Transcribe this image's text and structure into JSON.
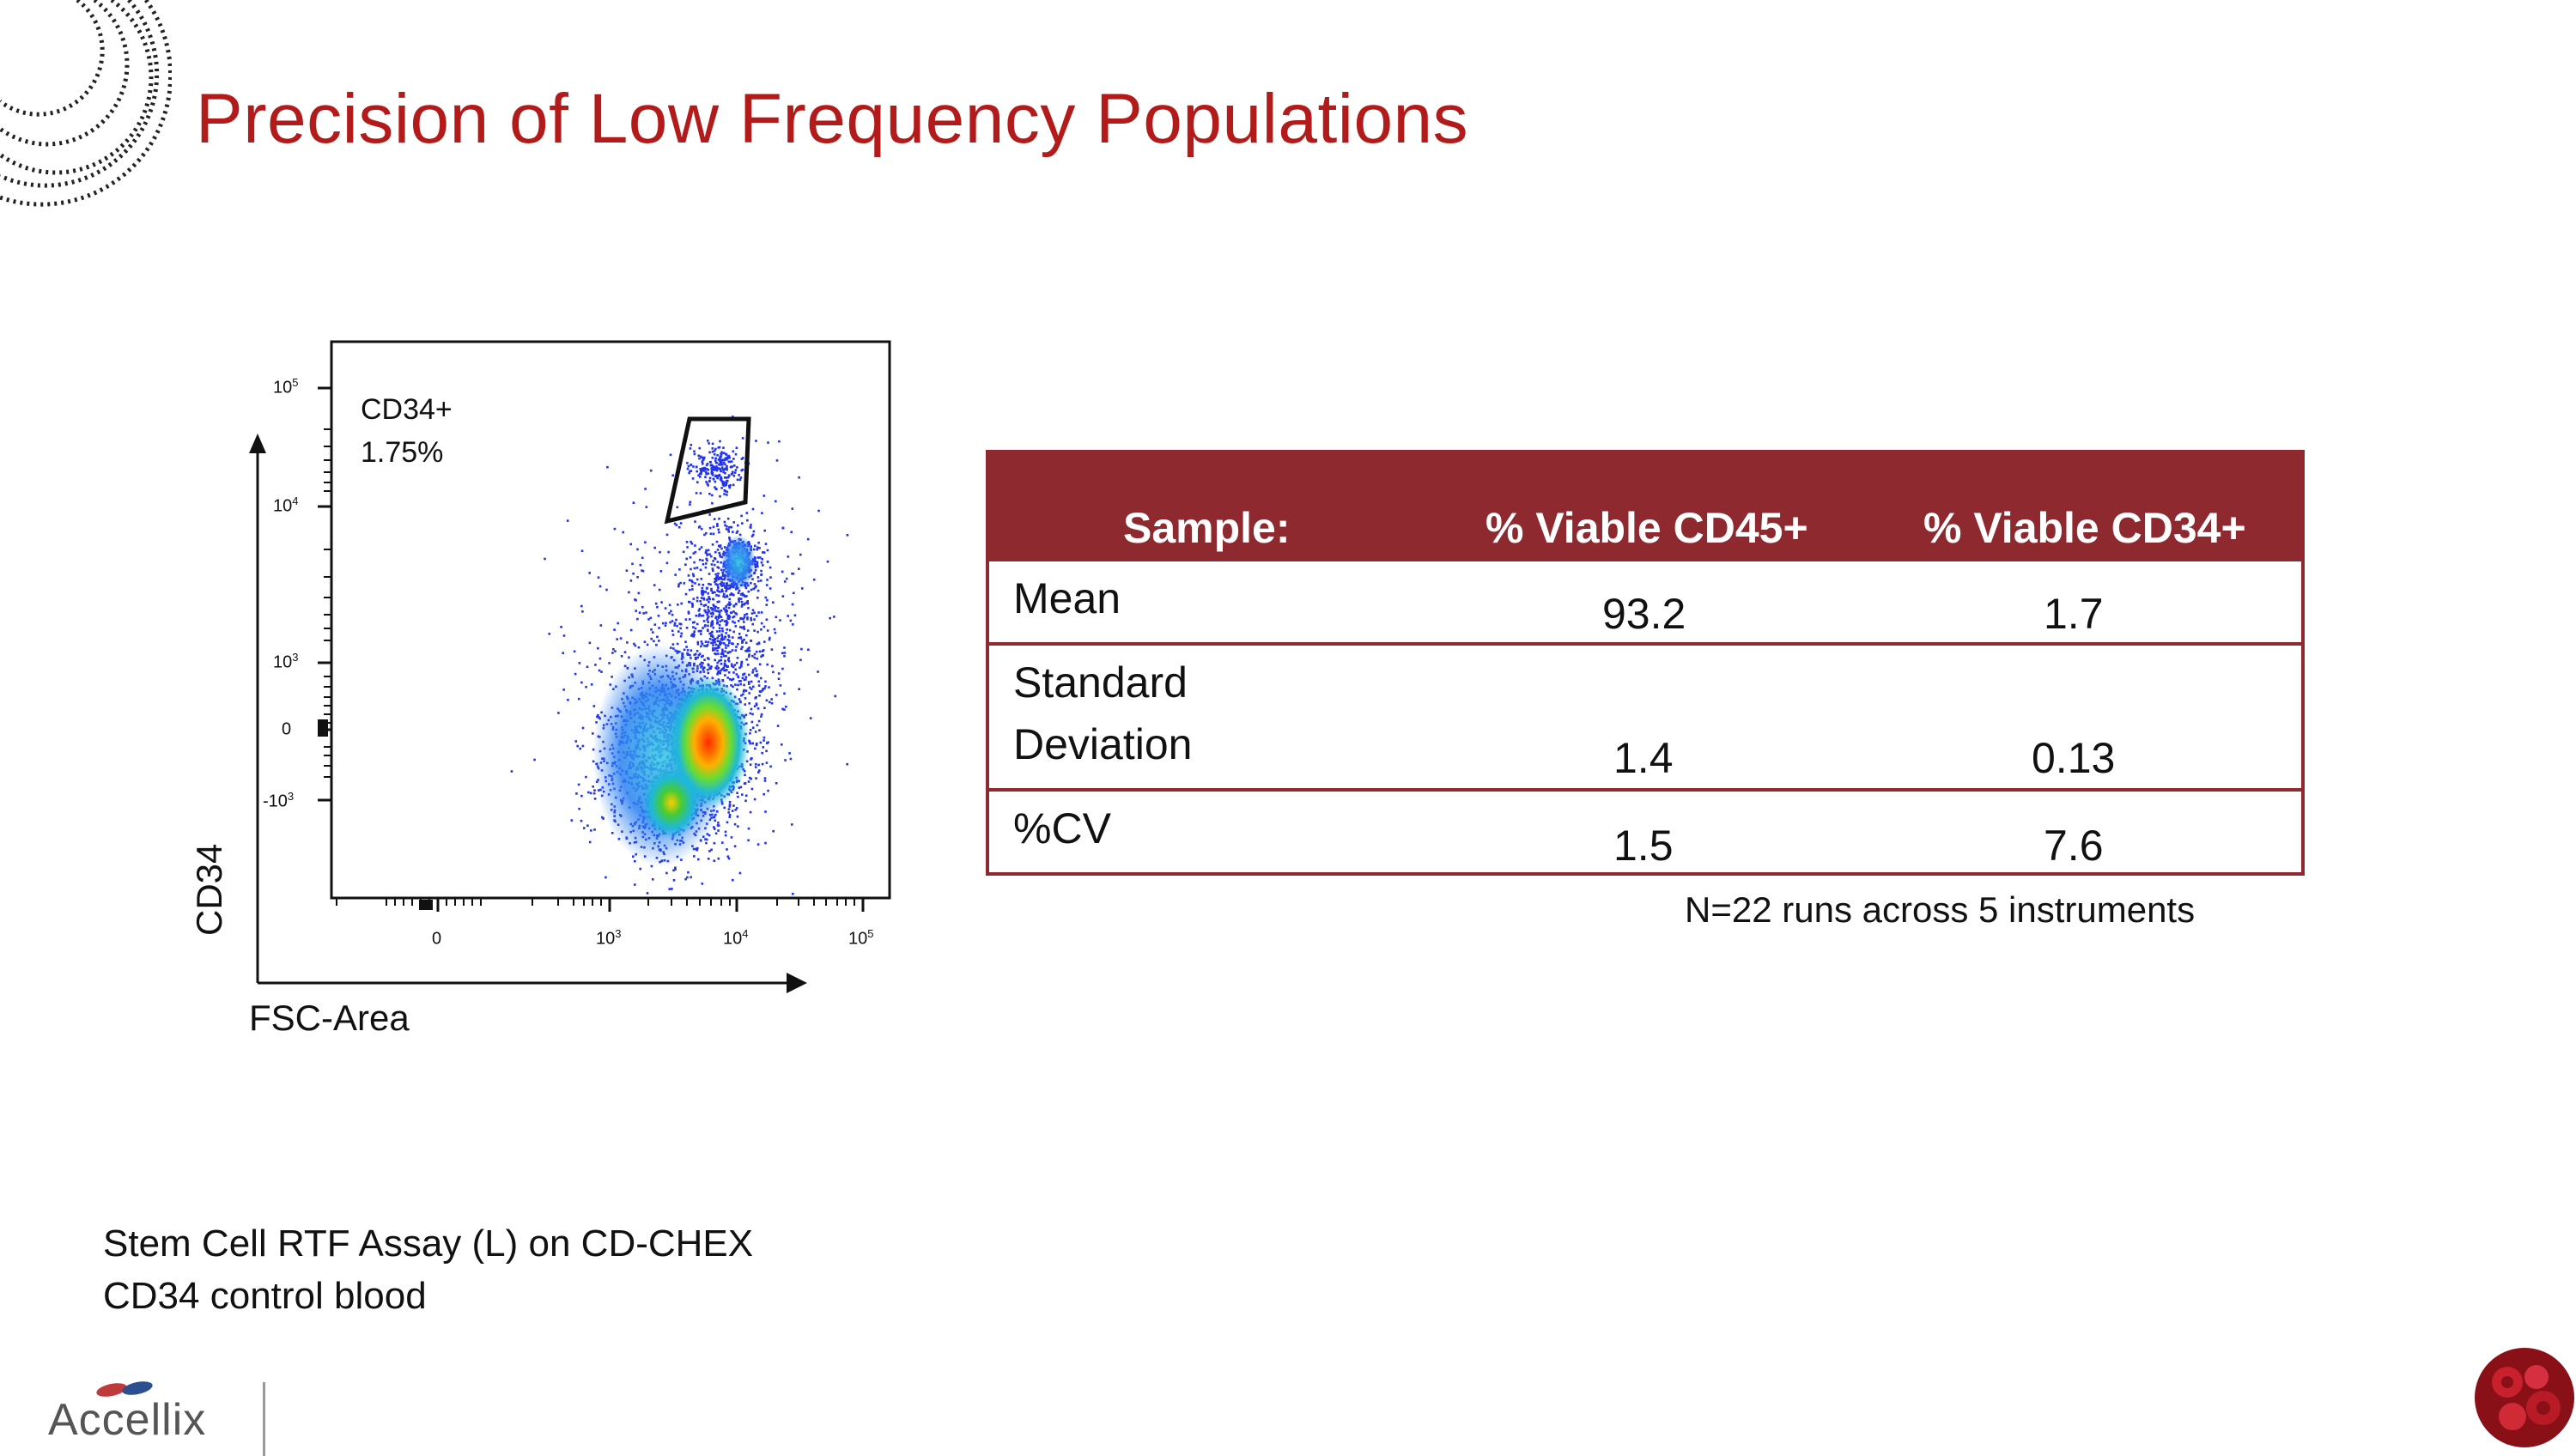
{
  "slide": {
    "title": "Precision of Low Frequency Populations",
    "caption_line1": "Stem Cell RTF Assay (L) on CD-CHEX",
    "caption_line2": "CD34 control blood",
    "logo_text": "Accellix",
    "footnote": "N=22 runs across 5 instruments"
  },
  "plot": {
    "y_label": "CD34",
    "x_label": "FSC-Area",
    "gate_name": "CD34+",
    "gate_percent": "1.75%",
    "y_ticks": [
      {
        "base": "10",
        "exp": "5",
        "text": "10^5"
      },
      {
        "base": "10",
        "exp": "4",
        "text": "10^4"
      },
      {
        "base": "10",
        "exp": "3",
        "text": "10^3"
      },
      {
        "base": "0",
        "exp": "",
        "text": "0"
      },
      {
        "base": "-10",
        "exp": "3",
        "text": "-10^3"
      }
    ],
    "x_ticks": [
      {
        "base": "0",
        "exp": "",
        "text": "0"
      },
      {
        "base": "10",
        "exp": "3",
        "text": "10^3"
      },
      {
        "base": "10",
        "exp": "4",
        "text": "10^4"
      },
      {
        "base": "10",
        "exp": "5",
        "text": "10^5"
      }
    ]
  },
  "table": {
    "headers": [
      "Sample:",
      "% Viable CD45+",
      "% Viable CD34+"
    ],
    "rows": [
      {
        "label": "Mean",
        "cd45": "93.2",
        "cd34": "1.7"
      },
      {
        "label_line1": "Standard",
        "label_line2": "Deviation",
        "cd45": "1.4",
        "cd34": "0.13"
      },
      {
        "label": "%CV",
        "cd45": "1.5",
        "cd34": "7.6"
      }
    ]
  },
  "colors": {
    "title": "#b31b1b",
    "table_header": "#8e2a2f",
    "dot_blue": "#2233ee"
  },
  "icons": [
    "binary-arc-icon",
    "accellix-logo-icon",
    "blood-cell-icon"
  ]
}
